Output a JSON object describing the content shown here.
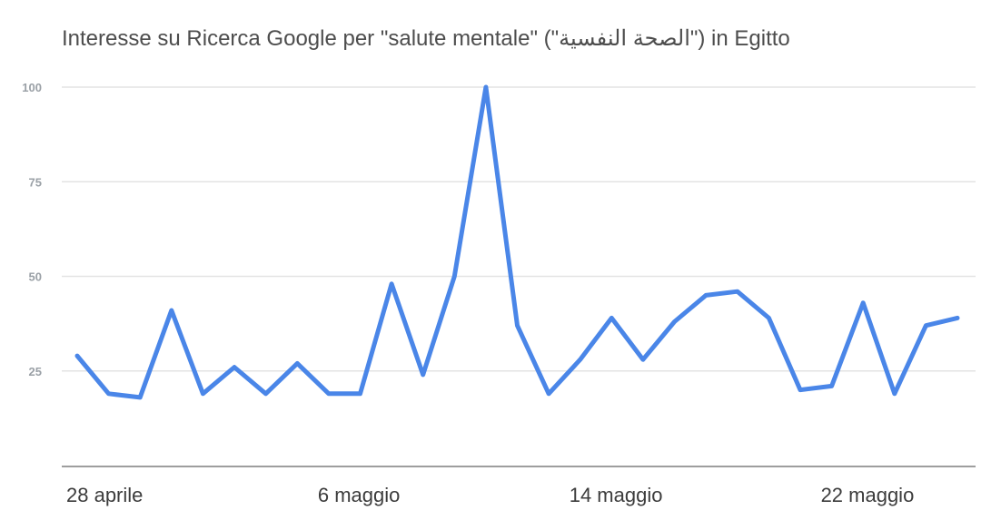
{
  "chart_data": {
    "type": "line",
    "title": "Interesse su Ricerca Google per \"salute mentale\" (\"الصحة النفسية\") in Egitto",
    "xlabel": "",
    "ylabel": "",
    "ylim": [
      0,
      100
    ],
    "yticks": [
      25,
      50,
      75,
      100
    ],
    "xtick_labels": [
      "28 aprile",
      "6 maggio",
      "14 maggio",
      "22 maggio"
    ],
    "xtick_index": [
      0,
      8,
      16,
      24
    ],
    "grid": true,
    "color": "#4a86e8",
    "series": [
      {
        "values": [
          29,
          19,
          18,
          41,
          19,
          26,
          19,
          27,
          19,
          19,
          48,
          24,
          50,
          100,
          37,
          19,
          28,
          39,
          28,
          38,
          45,
          46,
          39,
          20,
          21,
          43,
          19,
          37,
          39
        ]
      }
    ]
  }
}
